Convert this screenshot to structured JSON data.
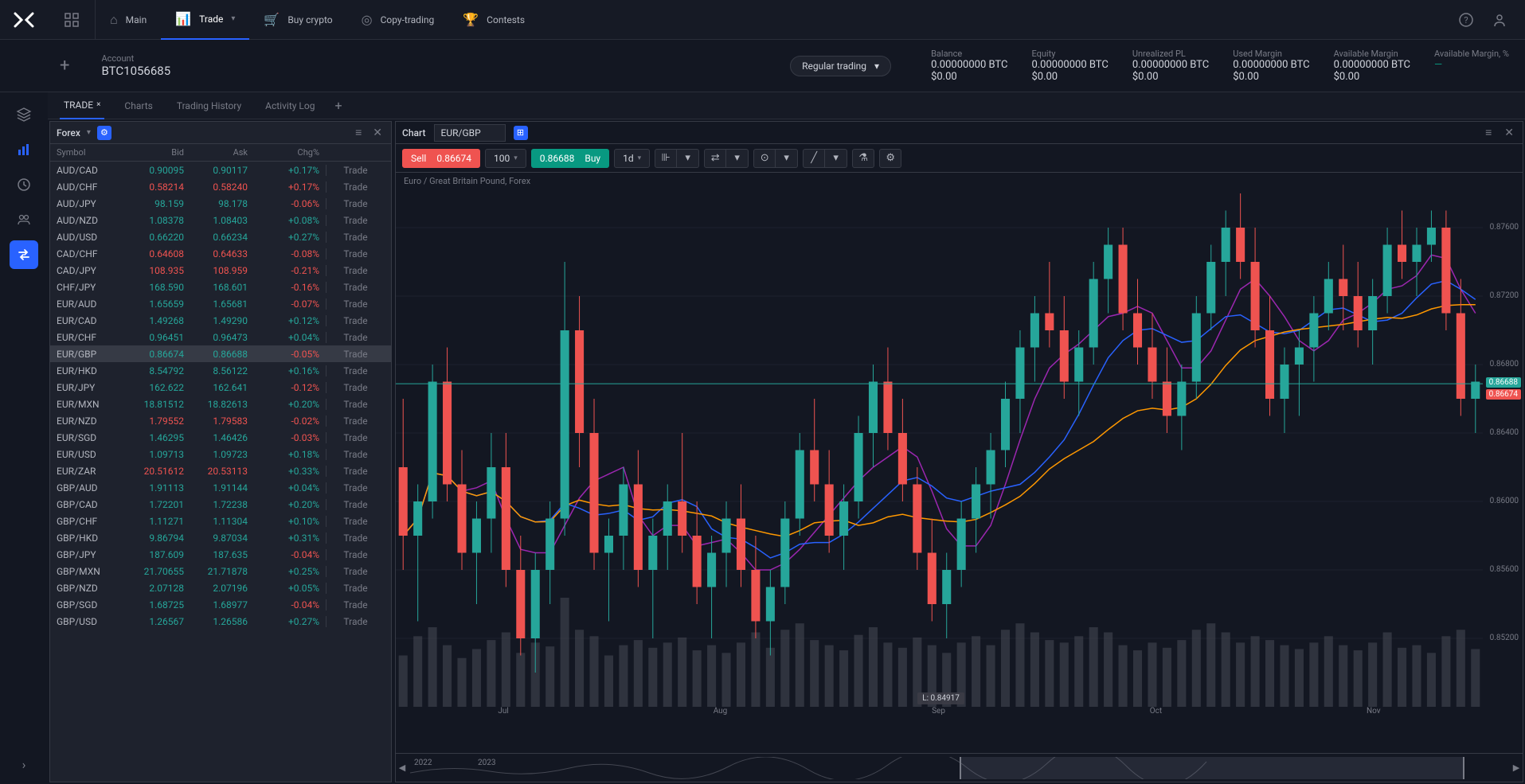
{
  "nav": {
    "items": [
      {
        "label": "Main",
        "icon": "⌂"
      },
      {
        "label": "Trade",
        "icon": "📊",
        "active": true,
        "chev": true
      },
      {
        "label": "Buy crypto",
        "icon": "🛒"
      },
      {
        "label": "Copy-trading",
        "icon": "◎"
      },
      {
        "label": "Contests",
        "icon": "🏆"
      }
    ]
  },
  "account": {
    "label": "Account",
    "id": "BTC1056685",
    "mode": "Regular trading",
    "balances": [
      {
        "label": "Balance",
        "value": "0.00000000 BTC",
        "sub": "$0.00"
      },
      {
        "label": "Equity",
        "value": "0.00000000 BTC",
        "sub": "$0.00"
      },
      {
        "label": "Unrealized PL",
        "value": "0.00000000 BTC",
        "sub": "$0.00"
      },
      {
        "label": "Used Margin",
        "value": "0.00000000 BTC",
        "sub": "$0.00"
      },
      {
        "label": "Available Margin",
        "value": "0.00000000 BTC",
        "sub": "$0.00"
      },
      {
        "label": "Available Margin, %",
        "value": "—",
        "dash": true
      }
    ]
  },
  "tabs": [
    {
      "label": "TRADE",
      "active": true,
      "closable": true
    },
    {
      "label": "Charts"
    },
    {
      "label": "Trading History"
    },
    {
      "label": "Activity Log"
    }
  ],
  "watchlist": {
    "title": "Forex",
    "header": {
      "sym": "Symbol",
      "bid": "Bid",
      "ask": "Ask",
      "chg": "Chg%"
    },
    "trade_label": "Trade",
    "rows": [
      {
        "sym": "AUD/CAD",
        "bid": "0.90095",
        "ask": "0.90117",
        "chg": "+0.17%",
        "dir": 1
      },
      {
        "sym": "AUD/CHF",
        "bid": "0.58214",
        "ask": "0.58240",
        "chg": "+0.17%",
        "dir": -1,
        "px": -1
      },
      {
        "sym": "AUD/JPY",
        "bid": "98.159",
        "ask": "98.178",
        "chg": "-0.06%",
        "dir": -1,
        "px": 1
      },
      {
        "sym": "AUD/NZD",
        "bid": "1.08378",
        "ask": "1.08403",
        "chg": "+0.08%",
        "dir": 1
      },
      {
        "sym": "AUD/USD",
        "bid": "0.66220",
        "ask": "0.66234",
        "chg": "+0.27%",
        "dir": 1
      },
      {
        "sym": "CAD/CHF",
        "bid": "0.64608",
        "ask": "0.64633",
        "chg": "-0.08%",
        "dir": -1,
        "px": -1
      },
      {
        "sym": "CAD/JPY",
        "bid": "108.935",
        "ask": "108.959",
        "chg": "-0.21%",
        "dir": -1,
        "px": -1
      },
      {
        "sym": "CHF/JPY",
        "bid": "168.590",
        "ask": "168.601",
        "chg": "-0.16%",
        "dir": -1,
        "px": 1
      },
      {
        "sym": "EUR/AUD",
        "bid": "1.65659",
        "ask": "1.65681",
        "chg": "-0.07%",
        "dir": -1,
        "px": 1
      },
      {
        "sym": "EUR/CAD",
        "bid": "1.49268",
        "ask": "1.49290",
        "chg": "+0.12%",
        "dir": 1
      },
      {
        "sym": "EUR/CHF",
        "bid": "0.96451",
        "ask": "0.96473",
        "chg": "+0.04%",
        "dir": 1
      },
      {
        "sym": "EUR/GBP",
        "bid": "0.86674",
        "ask": "0.86688",
        "chg": "-0.05%",
        "dir": -1,
        "px": 1,
        "sel": true
      },
      {
        "sym": "EUR/HKD",
        "bid": "8.54792",
        "ask": "8.56122",
        "chg": "+0.16%",
        "dir": 1
      },
      {
        "sym": "EUR/JPY",
        "bid": "162.622",
        "ask": "162.641",
        "chg": "-0.12%",
        "dir": -1,
        "px": 1
      },
      {
        "sym": "EUR/MXN",
        "bid": "18.81512",
        "ask": "18.82613",
        "chg": "+0.20%",
        "dir": 1
      },
      {
        "sym": "EUR/NZD",
        "bid": "1.79552",
        "ask": "1.79583",
        "chg": "-0.02%",
        "dir": -1,
        "px": -1
      },
      {
        "sym": "EUR/SGD",
        "bid": "1.46295",
        "ask": "1.46426",
        "chg": "-0.03%",
        "dir": -1,
        "px": 1
      },
      {
        "sym": "EUR/USD",
        "bid": "1.09713",
        "ask": "1.09723",
        "chg": "+0.18%",
        "dir": 1
      },
      {
        "sym": "EUR/ZAR",
        "bid": "20.51612",
        "ask": "20.53113",
        "chg": "+0.33%",
        "dir": 1,
        "px": -1
      },
      {
        "sym": "GBP/AUD",
        "bid": "1.91113",
        "ask": "1.91144",
        "chg": "+0.04%",
        "dir": 1
      },
      {
        "sym": "GBP/CAD",
        "bid": "1.72201",
        "ask": "1.72238",
        "chg": "+0.20%",
        "dir": 1
      },
      {
        "sym": "GBP/CHF",
        "bid": "1.11271",
        "ask": "1.11304",
        "chg": "+0.10%",
        "dir": 1
      },
      {
        "sym": "GBP/HKD",
        "bid": "9.86794",
        "ask": "9.87034",
        "chg": "+0.31%",
        "dir": 1
      },
      {
        "sym": "GBP/JPY",
        "bid": "187.609",
        "ask": "187.635",
        "chg": "-0.04%",
        "dir": -1,
        "px": 1
      },
      {
        "sym": "GBP/MXN",
        "bid": "21.70655",
        "ask": "21.71878",
        "chg": "+0.25%",
        "dir": 1
      },
      {
        "sym": "GBP/NZD",
        "bid": "2.07128",
        "ask": "2.07196",
        "chg": "+0.05%",
        "dir": 1
      },
      {
        "sym": "GBP/SGD",
        "bid": "1.68725",
        "ask": "1.68977",
        "chg": "-0.04%",
        "dir": -1,
        "px": 1
      },
      {
        "sym": "GBP/USD",
        "bid": "1.26567",
        "ask": "1.26586",
        "chg": "+0.27%",
        "dir": 1
      }
    ]
  },
  "chart": {
    "panel_title": "Chart",
    "symbol": "EUR/GBP",
    "subtitle": "Euro / Great Britain Pound, Forex",
    "sell_label": "Sell",
    "sell_price": "0.86674",
    "buy_label": "Buy",
    "buy_price": "0.86688",
    "qty": "100",
    "tf": "1d",
    "y_ticks": [
      0.876,
      0.872,
      0.868,
      0.864,
      0.86,
      0.856,
      0.852
    ],
    "y_min": 0.848,
    "y_max": 0.878,
    "current_bid": 0.86674,
    "current_ask": 0.86688,
    "bid_tag": "0.86674",
    "ask_tag": "0.86688",
    "low_badge": "L: 0.84917",
    "x_labels": [
      "Jul",
      "Aug",
      "Sep",
      "Oct",
      "Nov"
    ],
    "nav_years": [
      "2022",
      "2023"
    ],
    "colors": {
      "up": "#26a69a",
      "down": "#ef5350",
      "ma1": "#ff9800",
      "ma2": "#2962ff",
      "ma3": "#9c27b0",
      "vol": "#434651",
      "grid": "#1e222d"
    },
    "candles": [
      {
        "o": 0.862,
        "h": 0.866,
        "l": 0.856,
        "c": 0.858,
        "v": 0.4
      },
      {
        "o": 0.858,
        "h": 0.861,
        "l": 0.853,
        "c": 0.86,
        "v": 0.55
      },
      {
        "o": 0.86,
        "h": 0.868,
        "l": 0.859,
        "c": 0.867,
        "v": 0.62
      },
      {
        "o": 0.867,
        "h": 0.869,
        "l": 0.86,
        "c": 0.861,
        "v": 0.48
      },
      {
        "o": 0.861,
        "h": 0.863,
        "l": 0.856,
        "c": 0.857,
        "v": 0.38
      },
      {
        "o": 0.857,
        "h": 0.86,
        "l": 0.854,
        "c": 0.859,
        "v": 0.45
      },
      {
        "o": 0.859,
        "h": 0.864,
        "l": 0.857,
        "c": 0.862,
        "v": 0.52
      },
      {
        "o": 0.862,
        "h": 0.864,
        "l": 0.855,
        "c": 0.856,
        "v": 0.58
      },
      {
        "o": 0.856,
        "h": 0.858,
        "l": 0.851,
        "c": 0.852,
        "v": 0.42
      },
      {
        "o": 0.852,
        "h": 0.857,
        "l": 0.85,
        "c": 0.856,
        "v": 0.5
      },
      {
        "o": 0.856,
        "h": 0.86,
        "l": 0.854,
        "c": 0.859,
        "v": 0.47
      },
      {
        "o": 0.859,
        "h": 0.874,
        "l": 0.858,
        "c": 0.87,
        "v": 0.85
      },
      {
        "o": 0.87,
        "h": 0.872,
        "l": 0.862,
        "c": 0.864,
        "v": 0.6
      },
      {
        "o": 0.864,
        "h": 0.866,
        "l": 0.856,
        "c": 0.857,
        "v": 0.55
      },
      {
        "o": 0.857,
        "h": 0.859,
        "l": 0.853,
        "c": 0.858,
        "v": 0.4
      },
      {
        "o": 0.858,
        "h": 0.862,
        "l": 0.856,
        "c": 0.861,
        "v": 0.48
      },
      {
        "o": 0.861,
        "h": 0.863,
        "l": 0.855,
        "c": 0.856,
        "v": 0.52
      },
      {
        "o": 0.856,
        "h": 0.859,
        "l": 0.852,
        "c": 0.858,
        "v": 0.46
      },
      {
        "o": 0.858,
        "h": 0.861,
        "l": 0.856,
        "c": 0.86,
        "v": 0.5
      },
      {
        "o": 0.86,
        "h": 0.864,
        "l": 0.857,
        "c": 0.858,
        "v": 0.54
      },
      {
        "o": 0.858,
        "h": 0.86,
        "l": 0.854,
        "c": 0.855,
        "v": 0.44
      },
      {
        "o": 0.855,
        "h": 0.858,
        "l": 0.852,
        "c": 0.857,
        "v": 0.48
      },
      {
        "o": 0.857,
        "h": 0.86,
        "l": 0.855,
        "c": 0.859,
        "v": 0.42
      },
      {
        "o": 0.859,
        "h": 0.861,
        "l": 0.855,
        "c": 0.856,
        "v": 0.5
      },
      {
        "o": 0.856,
        "h": 0.858,
        "l": 0.852,
        "c": 0.853,
        "v": 0.58
      },
      {
        "o": 0.853,
        "h": 0.856,
        "l": 0.851,
        "c": 0.855,
        "v": 0.46
      },
      {
        "o": 0.855,
        "h": 0.86,
        "l": 0.854,
        "c": 0.859,
        "v": 0.6
      },
      {
        "o": 0.859,
        "h": 0.864,
        "l": 0.858,
        "c": 0.863,
        "v": 0.65
      },
      {
        "o": 0.863,
        "h": 0.866,
        "l": 0.86,
        "c": 0.861,
        "v": 0.52
      },
      {
        "o": 0.861,
        "h": 0.863,
        "l": 0.857,
        "c": 0.858,
        "v": 0.48
      },
      {
        "o": 0.858,
        "h": 0.861,
        "l": 0.856,
        "c": 0.86,
        "v": 0.44
      },
      {
        "o": 0.86,
        "h": 0.865,
        "l": 0.859,
        "c": 0.864,
        "v": 0.56
      },
      {
        "o": 0.864,
        "h": 0.868,
        "l": 0.862,
        "c": 0.867,
        "v": 0.62
      },
      {
        "o": 0.867,
        "h": 0.869,
        "l": 0.863,
        "c": 0.864,
        "v": 0.5
      },
      {
        "o": 0.864,
        "h": 0.866,
        "l": 0.86,
        "c": 0.861,
        "v": 0.46
      },
      {
        "o": 0.861,
        "h": 0.862,
        "l": 0.856,
        "c": 0.857,
        "v": 0.54
      },
      {
        "o": 0.857,
        "h": 0.859,
        "l": 0.853,
        "c": 0.854,
        "v": 0.48
      },
      {
        "o": 0.854,
        "h": 0.857,
        "l": 0.852,
        "c": 0.856,
        "v": 0.42
      },
      {
        "o": 0.856,
        "h": 0.86,
        "l": 0.855,
        "c": 0.859,
        "v": 0.5
      },
      {
        "o": 0.859,
        "h": 0.862,
        "l": 0.857,
        "c": 0.861,
        "v": 0.55
      },
      {
        "o": 0.861,
        "h": 0.864,
        "l": 0.859,
        "c": 0.863,
        "v": 0.48
      },
      {
        "o": 0.863,
        "h": 0.867,
        "l": 0.862,
        "c": 0.866,
        "v": 0.6
      },
      {
        "o": 0.866,
        "h": 0.87,
        "l": 0.864,
        "c": 0.869,
        "v": 0.65
      },
      {
        "o": 0.869,
        "h": 0.872,
        "l": 0.867,
        "c": 0.871,
        "v": 0.58
      },
      {
        "o": 0.871,
        "h": 0.874,
        "l": 0.869,
        "c": 0.87,
        "v": 0.52
      },
      {
        "o": 0.87,
        "h": 0.872,
        "l": 0.866,
        "c": 0.867,
        "v": 0.5
      },
      {
        "o": 0.867,
        "h": 0.87,
        "l": 0.865,
        "c": 0.869,
        "v": 0.55
      },
      {
        "o": 0.869,
        "h": 0.874,
        "l": 0.868,
        "c": 0.873,
        "v": 0.62
      },
      {
        "o": 0.873,
        "h": 0.876,
        "l": 0.871,
        "c": 0.875,
        "v": 0.58
      },
      {
        "o": 0.875,
        "h": 0.876,
        "l": 0.87,
        "c": 0.871,
        "v": 0.48
      },
      {
        "o": 0.871,
        "h": 0.873,
        "l": 0.868,
        "c": 0.869,
        "v": 0.44
      },
      {
        "o": 0.869,
        "h": 0.871,
        "l": 0.866,
        "c": 0.867,
        "v": 0.5
      },
      {
        "o": 0.867,
        "h": 0.869,
        "l": 0.864,
        "c": 0.865,
        "v": 0.46
      },
      {
        "o": 0.865,
        "h": 0.868,
        "l": 0.863,
        "c": 0.867,
        "v": 0.52
      },
      {
        "o": 0.867,
        "h": 0.872,
        "l": 0.866,
        "c": 0.871,
        "v": 0.6
      },
      {
        "o": 0.871,
        "h": 0.875,
        "l": 0.87,
        "c": 0.874,
        "v": 0.65
      },
      {
        "o": 0.874,
        "h": 0.877,
        "l": 0.872,
        "c": 0.876,
        "v": 0.58
      },
      {
        "o": 0.876,
        "h": 0.878,
        "l": 0.873,
        "c": 0.874,
        "v": 0.5
      },
      {
        "o": 0.874,
        "h": 0.876,
        "l": 0.869,
        "c": 0.87,
        "v": 0.55
      },
      {
        "o": 0.87,
        "h": 0.872,
        "l": 0.865,
        "c": 0.866,
        "v": 0.52
      },
      {
        "o": 0.866,
        "h": 0.869,
        "l": 0.864,
        "c": 0.868,
        "v": 0.48
      },
      {
        "o": 0.868,
        "h": 0.87,
        "l": 0.865,
        "c": 0.869,
        "v": 0.45
      },
      {
        "o": 0.869,
        "h": 0.872,
        "l": 0.867,
        "c": 0.871,
        "v": 0.5
      },
      {
        "o": 0.871,
        "h": 0.874,
        "l": 0.87,
        "c": 0.873,
        "v": 0.55
      },
      {
        "o": 0.873,
        "h": 0.875,
        "l": 0.87,
        "c": 0.872,
        "v": 0.48
      },
      {
        "o": 0.872,
        "h": 0.874,
        "l": 0.869,
        "c": 0.87,
        "v": 0.44
      },
      {
        "o": 0.87,
        "h": 0.873,
        "l": 0.868,
        "c": 0.872,
        "v": 0.5
      },
      {
        "o": 0.872,
        "h": 0.876,
        "l": 0.871,
        "c": 0.875,
        "v": 0.58
      },
      {
        "o": 0.875,
        "h": 0.877,
        "l": 0.873,
        "c": 0.874,
        "v": 0.46
      },
      {
        "o": 0.874,
        "h": 0.876,
        "l": 0.872,
        "c": 0.875,
        "v": 0.48
      },
      {
        "o": 0.875,
        "h": 0.877,
        "l": 0.874,
        "c": 0.876,
        "v": 0.42
      },
      {
        "o": 0.876,
        "h": 0.877,
        "l": 0.87,
        "c": 0.871,
        "v": 0.55
      },
      {
        "o": 0.871,
        "h": 0.873,
        "l": 0.865,
        "c": 0.866,
        "v": 0.6
      },
      {
        "o": 0.866,
        "h": 0.868,
        "l": 0.864,
        "c": 0.867,
        "v": 0.45
      }
    ]
  }
}
